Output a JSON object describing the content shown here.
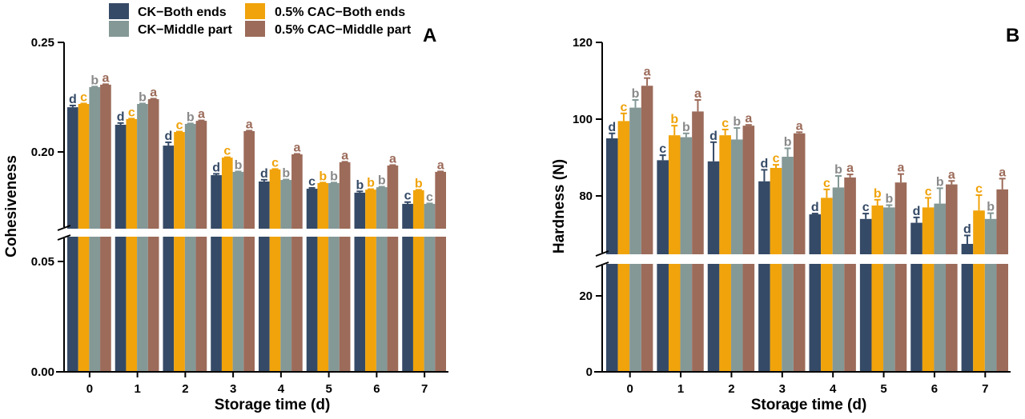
{
  "legend": {
    "items": [
      {
        "label": "CK−Both ends",
        "color": "#354a66"
      },
      {
        "label": "CK−Middle part",
        "color": "#849896"
      },
      {
        "label": "0.5% CAC−Both ends",
        "color": "#f0a30a"
      },
      {
        "label": "0.5% CAC−Middle part",
        "color": "#9c6b5a"
      }
    ]
  },
  "chart_data": [
    {
      "type": "bar",
      "panel": "A",
      "title": "",
      "xlabel": "Storage time (d)",
      "ylabel": "Cohesiveness",
      "categories": [
        "0",
        "1",
        "2",
        "3",
        "4",
        "5",
        "6",
        "7"
      ],
      "axis_break": {
        "lower_range": [
          0.0,
          0.05
        ],
        "upper_range": [
          0.165,
          0.25
        ]
      },
      "yticks": {
        "lower": [
          "0.00",
          "0.05"
        ],
        "upper": [
          "0.20",
          "0.25"
        ]
      },
      "ylim": [
        0,
        0.25
      ],
      "grid": false,
      "legend_position": "top-center",
      "series": [
        {
          "name": "CK−Both ends",
          "color": "#354a66",
          "values": [
            0.2204,
            0.2124,
            0.2029,
            0.1894,
            0.1865,
            0.1832,
            0.1814,
            0.1763
          ],
          "errors": [
            0.0008,
            0.0008,
            0.0015,
            0.0006,
            0.0008,
            0.0004,
            0.0006,
            0.0008
          ],
          "letters": [
            "d",
            "d",
            "d",
            "d",
            "d",
            "c",
            "b",
            "c"
          ]
        },
        {
          "name": "0.5% CAC−Both ends",
          "color": "#f0a30a",
          "values": [
            0.2219,
            0.215,
            0.2091,
            0.1974,
            0.192,
            0.1858,
            0.1828,
            0.1825
          ],
          "errors": [
            0.0002,
            0.0002,
            0.0002,
            0.0002,
            0.0002,
            0.0002,
            0.0002,
            0.0002
          ],
          "letters": [
            "c",
            "c",
            "c",
            "c",
            "c",
            "b",
            "b",
            "b"
          ]
        },
        {
          "name": "CK−Middle part",
          "color": "#849896",
          "values": [
            0.2296,
            0.2219,
            0.2128,
            0.1909,
            0.1872,
            0.1858,
            0.1839,
            0.1763
          ],
          "errors": [
            0.0002,
            0.0002,
            0.0002,
            0.0002,
            0.0002,
            0.0002,
            0.0002,
            0.0002
          ],
          "letters": [
            "b",
            "b",
            "b",
            "b",
            "b",
            "b",
            "b",
            "c"
          ]
        },
        {
          "name": "0.5% CAC−Middle part",
          "color": "#9c6b5a",
          "values": [
            0.2307,
            0.2241,
            0.2142,
            0.2095,
            0.1989,
            0.1953,
            0.1938,
            0.1909
          ],
          "errors": [
            0.0002,
            0.0002,
            0.0002,
            0.0002,
            0.0002,
            0.0002,
            0.0002,
            0.0002
          ],
          "letters": [
            "a",
            "a",
            "a",
            "a",
            "a",
            "a",
            "a",
            "a"
          ]
        }
      ]
    },
    {
      "type": "bar",
      "panel": "B",
      "title": "",
      "xlabel": "Storage time (d)",
      "ylabel": "Hardness (N)",
      "categories": [
        "0",
        "1",
        "2",
        "3",
        "4",
        "5",
        "6",
        "7"
      ],
      "axis_break": {
        "lower_range": [
          0,
          30
        ],
        "upper_range": [
          60,
          120
        ]
      },
      "yticks": {
        "lower": [
          "0",
          "20"
        ],
        "upper": [
          "80",
          "100",
          "120"
        ]
      },
      "ylim": [
        0,
        120
      ],
      "grid": false,
      "legend_position": "top-center",
      "series": [
        {
          "name": "CK−Both ends",
          "color": "#354a66",
          "values": [
            95.0,
            89.3,
            89.0,
            83.8,
            75.2,
            74.0,
            73.0,
            67.5
          ],
          "errors": [
            1.3,
            1.3,
            5.0,
            3.0,
            0.2,
            1.4,
            1.4,
            2.2
          ],
          "letters": [
            "d",
            "c",
            "d",
            "d",
            "d",
            "c",
            "d",
            "d"
          ]
        },
        {
          "name": "0.5% CAC−Both ends",
          "color": "#f0a30a",
          "values": [
            99.5,
            95.8,
            95.8,
            87.3,
            79.5,
            77.5,
            77.0,
            76.2
          ],
          "errors": [
            2.0,
            2.5,
            1.5,
            0.8,
            2.2,
            1.5,
            2.5,
            4.0
          ],
          "letters": [
            "c",
            "b",
            "c",
            "c",
            "c",
            "b",
            "c",
            "c"
          ]
        },
        {
          "name": "CK−Middle part",
          "color": "#849896",
          "values": [
            103.0,
            95.3,
            94.7,
            90.2,
            82.2,
            77.0,
            78.0,
            74.0
          ],
          "errors": [
            2.0,
            1.0,
            3.0,
            2.2,
            3.0,
            0.6,
            4.0,
            1.5
          ],
          "letters": [
            "b",
            "b",
            "b",
            "b",
            "b",
            "b",
            "b",
            "b"
          ]
        },
        {
          "name": "0.5% CAC−Middle part",
          "color": "#9c6b5a",
          "values": [
            108.7,
            102.0,
            98.3,
            96.3,
            84.8,
            83.5,
            83.0,
            81.7
          ],
          "errors": [
            2.0,
            3.0,
            0.2,
            0.3,
            0.8,
            2.2,
            0.9,
            2.8
          ],
          "letters": [
            "a",
            "a",
            "a",
            "a",
            "a",
            "a",
            "a",
            "a"
          ]
        }
      ]
    }
  ]
}
